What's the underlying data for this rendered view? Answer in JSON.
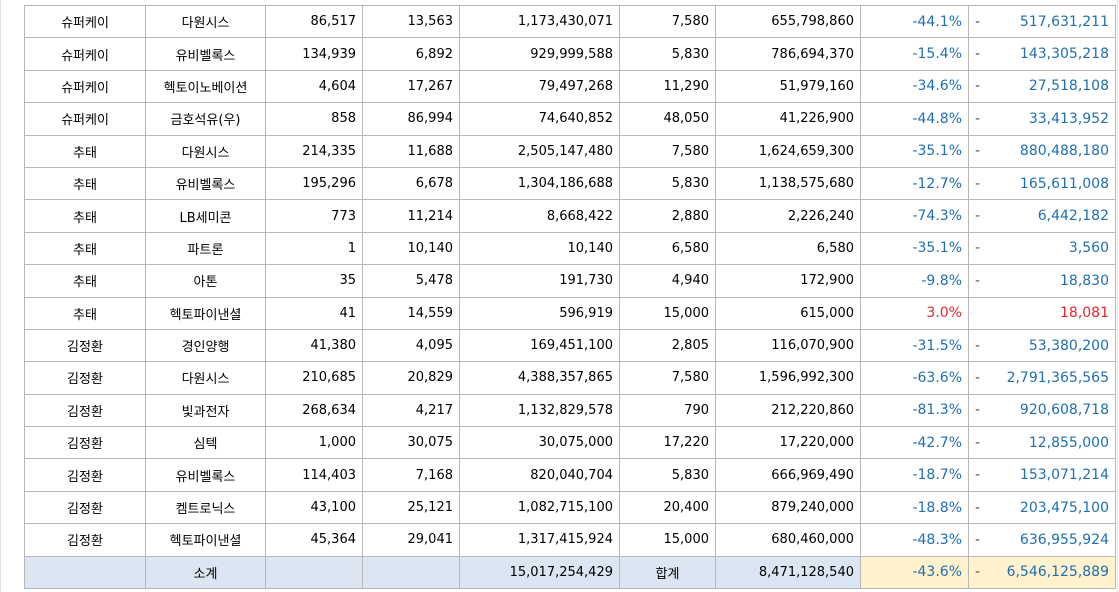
{
  "rows": [
    {
      "owner": "슈퍼케이",
      "company": "다원시스",
      "shares": "86,517",
      "avg_price": "13,563",
      "purchase": "1,173,430,071",
      "cur_price": "7,580",
      "valuation": "655,798,860",
      "rate": "-44.1%",
      "gain_sign": "-",
      "gain": "517,631,211",
      "positive": false
    },
    {
      "owner": "슈퍼케이",
      "company": "유비벨록스",
      "shares": "134,939",
      "avg_price": "6,892",
      "purchase": "929,999,588",
      "cur_price": "5,830",
      "valuation": "786,694,370",
      "rate": "-15.4%",
      "gain_sign": "-",
      "gain": "143,305,218",
      "positive": false
    },
    {
      "owner": "슈퍼케이",
      "company": "헥토이노베이션",
      "shares": "4,604",
      "avg_price": "17,267",
      "purchase": "79,497,268",
      "cur_price": "11,290",
      "valuation": "51,979,160",
      "rate": "-34.6%",
      "gain_sign": "-",
      "gain": "27,518,108",
      "positive": false
    },
    {
      "owner": "슈퍼케이",
      "company": "금호석유(우)",
      "shares": "858",
      "avg_price": "86,994",
      "purchase": "74,640,852",
      "cur_price": "48,050",
      "valuation": "41,226,900",
      "rate": "-44.8%",
      "gain_sign": "-",
      "gain": "33,413,952",
      "positive": false
    },
    {
      "owner": "추태",
      "company": "다원시스",
      "shares": "214,335",
      "avg_price": "11,688",
      "purchase": "2,505,147,480",
      "cur_price": "7,580",
      "valuation": "1,624,659,300",
      "rate": "-35.1%",
      "gain_sign": "-",
      "gain": "880,488,180",
      "positive": false
    },
    {
      "owner": "추태",
      "company": "유비벨록스",
      "shares": "195,296",
      "avg_price": "6,678",
      "purchase": "1,304,186,688",
      "cur_price": "5,830",
      "valuation": "1,138,575,680",
      "rate": "-12.7%",
      "gain_sign": "-",
      "gain": "165,611,008",
      "positive": false
    },
    {
      "owner": "추태",
      "company": "LB세미콘",
      "shares": "773",
      "avg_price": "11,214",
      "purchase": "8,668,422",
      "cur_price": "2,880",
      "valuation": "2,226,240",
      "rate": "-74.3%",
      "gain_sign": "-",
      "gain": "6,442,182",
      "positive": false
    },
    {
      "owner": "추태",
      "company": "파트론",
      "shares": "1",
      "avg_price": "10,140",
      "purchase": "10,140",
      "cur_price": "6,580",
      "valuation": "6,580",
      "rate": "-35.1%",
      "gain_sign": "-",
      "gain": "3,560",
      "positive": false
    },
    {
      "owner": "추태",
      "company": "아톤",
      "shares": "35",
      "avg_price": "5,478",
      "purchase": "191,730",
      "cur_price": "4,940",
      "valuation": "172,900",
      "rate": "-9.8%",
      "gain_sign": "-",
      "gain": "18,830",
      "positive": false
    },
    {
      "owner": "추태",
      "company": "헥토파이낸셜",
      "shares": "41",
      "avg_price": "14,559",
      "purchase": "596,919",
      "cur_price": "15,000",
      "valuation": "615,000",
      "rate": "3.0%",
      "gain_sign": "",
      "gain": "18,081",
      "positive": true
    },
    {
      "owner": "김정환",
      "company": "경인양행",
      "shares": "41,380",
      "avg_price": "4,095",
      "purchase": "169,451,100",
      "cur_price": "2,805",
      "valuation": "116,070,900",
      "rate": "-31.5%",
      "gain_sign": "-",
      "gain": "53,380,200",
      "positive": false
    },
    {
      "owner": "김정환",
      "company": "다원시스",
      "shares": "210,685",
      "avg_price": "20,829",
      "purchase": "4,388,357,865",
      "cur_price": "7,580",
      "valuation": "1,596,992,300",
      "rate": "-63.6%",
      "gain_sign": "-",
      "gain": "2,791,365,565",
      "positive": false
    },
    {
      "owner": "김정환",
      "company": "빛과전자",
      "shares": "268,634",
      "avg_price": "4,217",
      "purchase": "1,132,829,578",
      "cur_price": "790",
      "valuation": "212,220,860",
      "rate": "-81.3%",
      "gain_sign": "-",
      "gain": "920,608,718",
      "positive": false
    },
    {
      "owner": "김정환",
      "company": "심텍",
      "shares": "1,000",
      "avg_price": "30,075",
      "purchase": "30,075,000",
      "cur_price": "17,220",
      "valuation": "17,220,000",
      "rate": "-42.7%",
      "gain_sign": "-",
      "gain": "12,855,000",
      "positive": false
    },
    {
      "owner": "김정환",
      "company": "유비벨록스",
      "shares": "114,403",
      "avg_price": "7,168",
      "purchase": "820,040,704",
      "cur_price": "5,830",
      "valuation": "666,969,490",
      "rate": "-18.7%",
      "gain_sign": "-",
      "gain": "153,071,214",
      "positive": false
    },
    {
      "owner": "김정환",
      "company": "켐트로닉스",
      "shares": "43,100",
      "avg_price": "25,121",
      "purchase": "1,082,715,100",
      "cur_price": "20,400",
      "valuation": "879,240,000",
      "rate": "-18.8%",
      "gain_sign": "-",
      "gain": "203,475,100",
      "positive": false
    },
    {
      "owner": "김정환",
      "company": "헥토파이낸셜",
      "shares": "45,364",
      "avg_price": "29,041",
      "purchase": "1,317,415,924",
      "cur_price": "15,000",
      "valuation": "680,460,000",
      "rate": "-48.3%",
      "gain_sign": "-",
      "gain": "636,955,924",
      "positive": false
    }
  ],
  "total": {
    "subtotal_label": "소계",
    "purchase": "15,017,254,429",
    "sum_label": "합계",
    "valuation": "8,471,128,540",
    "rate": "-43.6%",
    "gain_sign": "-",
    "gain": "6,546,125,889"
  },
  "colors": {
    "negative": "#1f6fb2",
    "positive": "#e5262b",
    "total_bg": "#dce6f2",
    "highlight_bg": "#fff2cc"
  }
}
